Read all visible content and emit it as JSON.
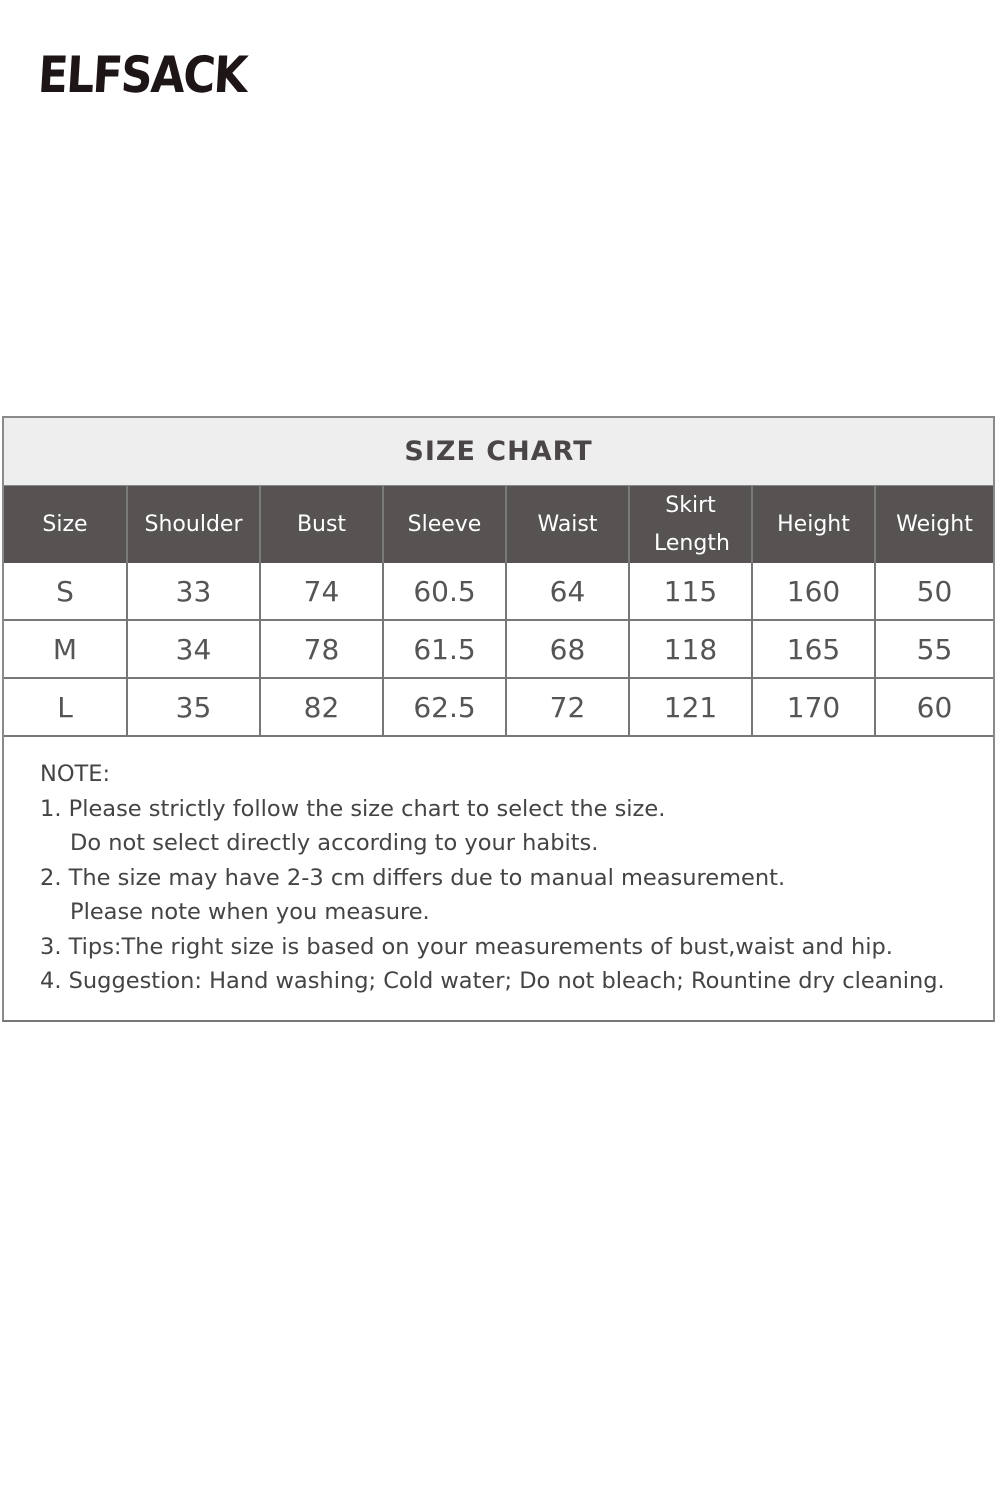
{
  "brand": {
    "logo_text": "ELFSACK"
  },
  "size_chart": {
    "title": "SIZE CHART",
    "headers": [
      "Size",
      "Shoulder",
      "Bust",
      "Sleeve",
      "Waist",
      "Skirt Length",
      "Height",
      "Weight"
    ],
    "rows": [
      [
        "S",
        "33",
        "74",
        "60.5",
        "64",
        "115",
        "160",
        "50"
      ],
      [
        "M",
        "34",
        "78",
        "61.5",
        "68",
        "118",
        "165",
        "55"
      ],
      [
        "L",
        "35",
        "82",
        "62.5",
        "72",
        "121",
        "170",
        "60"
      ]
    ]
  },
  "notes": {
    "heading": "NOTE:",
    "lines": [
      "1. Please strictly follow the size chart to select the size.",
      "Do not select directly according to your habits.",
      "2. The size may have 2-3 cm differs due to manual measurement.",
      "Please note when you measure.",
      "3. Tips:The right size is based on your measurements of bust,waist and hip.",
      "4. Suggestion: Hand washing; Cold water; Do not bleach; Rountine dry cleaning."
    ]
  }
}
